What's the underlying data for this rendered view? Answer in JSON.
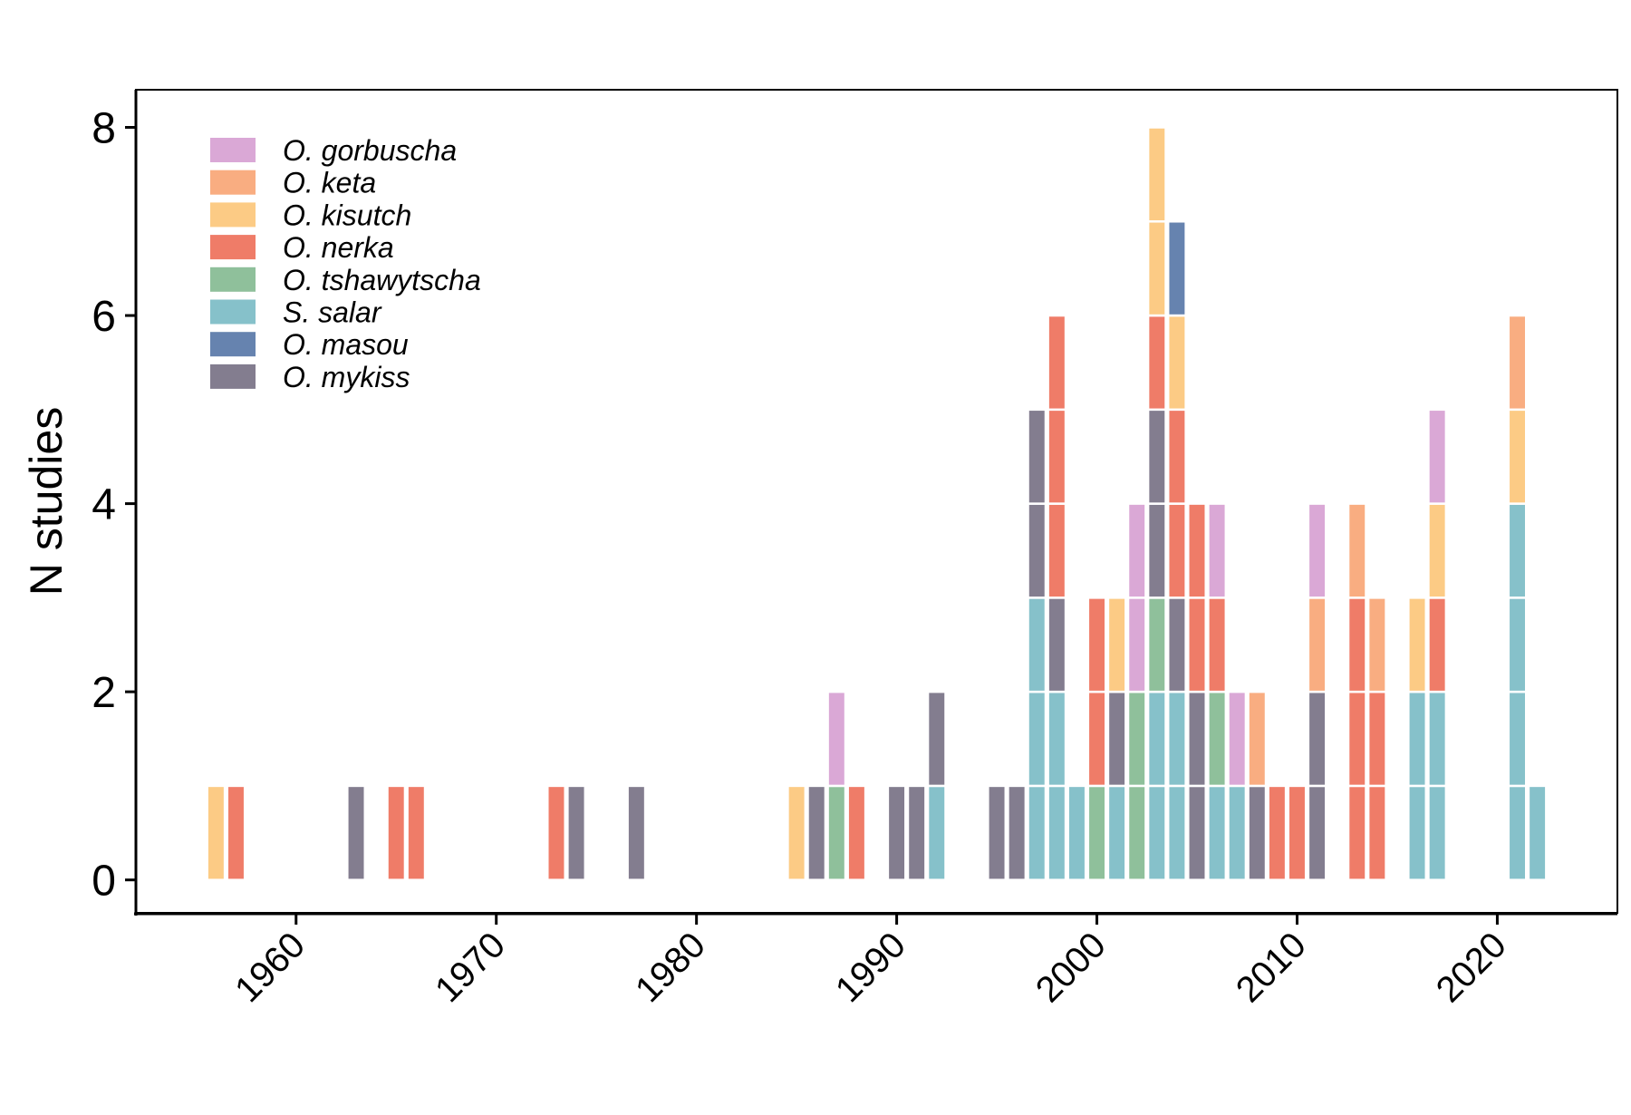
{
  "chart_data": {
    "type": "bar",
    "stacked": true,
    "xlabel": "",
    "ylabel": "N studies",
    "xlim": [
      1952,
      2026
    ],
    "ylim": [
      -0.35,
      8.4
    ],
    "x_ticks": [
      1960,
      1970,
      1980,
      1990,
      2000,
      2010,
      2020
    ],
    "y_ticks": [
      0,
      2,
      4,
      6,
      8
    ],
    "grid": false,
    "legend_position": "top-left",
    "series": [
      {
        "name": "O. gorbuscha",
        "color": "#DAA8D6"
      },
      {
        "name": "O. keta",
        "color": "#F9AD81"
      },
      {
        "name": "O. kisutch",
        "color": "#FCCB85"
      },
      {
        "name": "O. nerka",
        "color": "#EF7C68"
      },
      {
        "name": "O. tshawytscha",
        "color": "#8FC09B"
      },
      {
        "name": "S. salar",
        "color": "#86C1CA"
      },
      {
        "name": "O. masou",
        "color": "#6683AF"
      },
      {
        "name": "O. mykiss",
        "color": "#837D8F"
      }
    ],
    "stack_order_bottom_to_top": [
      "S. salar",
      "O. tshawytscha",
      "O. mykiss",
      "O. nerka",
      "O. kisutch",
      "O. masou",
      "O. keta",
      "O. gorbuscha"
    ],
    "years": [
      {
        "year": 1956,
        "counts": {
          "O. kisutch": 1
        }
      },
      {
        "year": 1957,
        "counts": {
          "O. nerka": 1
        }
      },
      {
        "year": 1963,
        "counts": {
          "O. mykiss": 1
        }
      },
      {
        "year": 1965,
        "counts": {
          "O. nerka": 1
        }
      },
      {
        "year": 1966,
        "counts": {
          "O. nerka": 1
        }
      },
      {
        "year": 1973,
        "counts": {
          "O. nerka": 1
        }
      },
      {
        "year": 1974,
        "counts": {
          "O. mykiss": 1
        }
      },
      {
        "year": 1977,
        "counts": {
          "O. mykiss": 1
        }
      },
      {
        "year": 1985,
        "counts": {
          "O. kisutch": 1
        }
      },
      {
        "year": 1986,
        "counts": {
          "O. mykiss": 1
        }
      },
      {
        "year": 1987,
        "counts": {
          "O. tshawytscha": 1,
          "O. gorbuscha": 1
        }
      },
      {
        "year": 1988,
        "counts": {
          "O. nerka": 1
        }
      },
      {
        "year": 1990,
        "counts": {
          "O. mykiss": 1
        }
      },
      {
        "year": 1991,
        "counts": {
          "O. mykiss": 1
        }
      },
      {
        "year": 1992,
        "counts": {
          "S. salar": 1,
          "O. mykiss": 1
        }
      },
      {
        "year": 1995,
        "counts": {
          "O. mykiss": 1
        }
      },
      {
        "year": 1996,
        "counts": {
          "O. mykiss": 1
        }
      },
      {
        "year": 1997,
        "counts": {
          "S. salar": 3,
          "O. mykiss": 2
        }
      },
      {
        "year": 1998,
        "counts": {
          "S. salar": 2,
          "O. nerka": 3,
          "O. mykiss": 1
        }
      },
      {
        "year": 1999,
        "counts": {
          "S. salar": 1
        }
      },
      {
        "year": 2000,
        "counts": {
          "O. tshawytscha": 1,
          "O. nerka": 2
        }
      },
      {
        "year": 2001,
        "counts": {
          "S. salar": 1,
          "O. mykiss": 1,
          "O. kisutch": 1
        }
      },
      {
        "year": 2002,
        "counts": {
          "O. tshawytscha": 2,
          "O. gorbuscha": 2
        }
      },
      {
        "year": 2003,
        "counts": {
          "S. salar": 2,
          "O. tshawytscha": 1,
          "O. nerka": 1,
          "O. mykiss": 2,
          "O. kisutch": 2
        }
      },
      {
        "year": 2004,
        "counts": {
          "S. salar": 2,
          "O. nerka": 2,
          "O. mykiss": 1,
          "O. masou": 1,
          "O. kisutch": 1
        }
      },
      {
        "year": 2005,
        "counts": {
          "O. nerka": 2,
          "O. mykiss": 2
        }
      },
      {
        "year": 2006,
        "counts": {
          "S. salar": 1,
          "O. tshawytscha": 1,
          "O. nerka": 1,
          "O. gorbuscha": 1
        }
      },
      {
        "year": 2007,
        "counts": {
          "S. salar": 1,
          "O. gorbuscha": 1
        }
      },
      {
        "year": 2008,
        "counts": {
          "O. mykiss": 1,
          "O. keta": 1
        }
      },
      {
        "year": 2009,
        "counts": {
          "O. nerka": 1
        }
      },
      {
        "year": 2010,
        "counts": {
          "O. nerka": 1
        }
      },
      {
        "year": 2011,
        "counts": {
          "O. mykiss": 2,
          "O. keta": 1,
          "O. gorbuscha": 1
        }
      },
      {
        "year": 2013,
        "counts": {
          "O. nerka": 3,
          "O. keta": 1
        }
      },
      {
        "year": 2014,
        "counts": {
          "O. nerka": 2,
          "O. keta": 1
        }
      },
      {
        "year": 2016,
        "counts": {
          "S. salar": 2,
          "O. kisutch": 1
        }
      },
      {
        "year": 2017,
        "counts": {
          "S. salar": 2,
          "O. nerka": 1,
          "O. kisutch": 1,
          "O. gorbuscha": 1
        }
      },
      {
        "year": 2021,
        "counts": {
          "S. salar": 4,
          "O. kisutch": 1,
          "O. keta": 1
        }
      },
      {
        "year": 2022,
        "counts": {
          "S. salar": 1
        }
      }
    ]
  }
}
